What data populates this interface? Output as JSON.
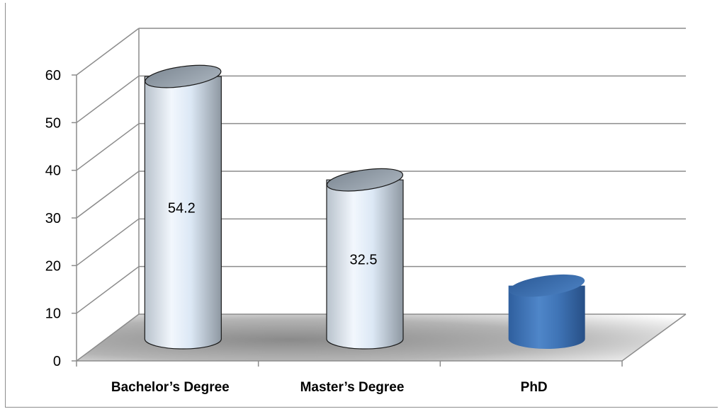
{
  "chart_data": {
    "type": "bar",
    "style": "3d-cylinder",
    "categories": [
      "Bachelor’s Degree",
      "Master’s Degree",
      "PhD"
    ],
    "values": [
      54.2,
      32.5,
      10.3
    ],
    "data_labels": [
      "54.2",
      "32.5",
      ""
    ],
    "ylim": [
      0,
      60
    ],
    "yticks": [
      "0",
      "10",
      "20",
      "30",
      "40",
      "50",
      "60"
    ],
    "grid": true,
    "legend": "none",
    "colors": {
      "highlighted_bar": "#4a7fc0",
      "default_bar": "#e8f1fb",
      "floor": "#9a9a9a",
      "grid": "#8c8c8c"
    },
    "highlighted_index": 2
  }
}
